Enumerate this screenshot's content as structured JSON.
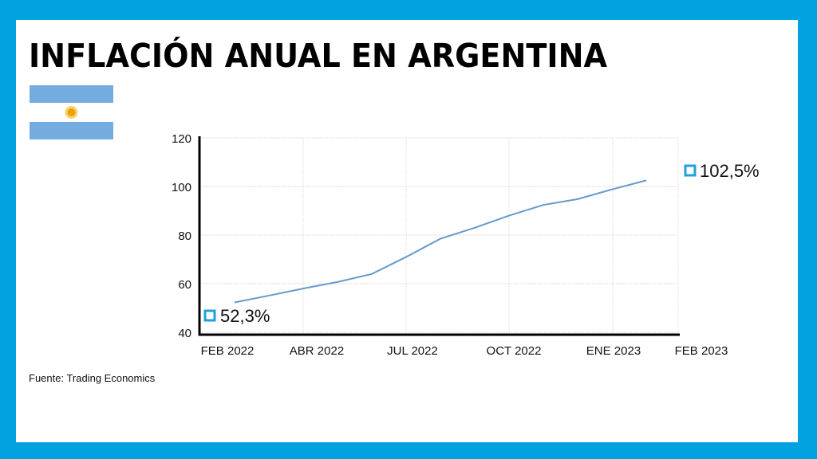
{
  "title": "INFLACIÓN ANUAL EN ARGENTINA",
  "source": "Fuente: Trading Economics",
  "colors": {
    "frame": "#00a3e0",
    "line": "#6699cc",
    "marker": "#1fa0dc",
    "flag_blue": "#74acdf",
    "sun": "#f6b40e"
  },
  "flag_icon": "argentina-flag-icon",
  "chart_data": {
    "type": "line",
    "title": "",
    "xlabel": "",
    "ylabel": "",
    "ylim": [
      40,
      120
    ],
    "yticks": [
      "40",
      "60",
      "80",
      "100",
      "120"
    ],
    "xtick_labels": [
      "FEB 2022",
      "ABR 2022",
      "JUL 2022",
      "OCT 2022",
      "ENE 2023",
      "FEB 2023"
    ],
    "grid": true,
    "x": [
      "2022-02",
      "2022-03",
      "2022-04",
      "2022-05",
      "2022-06",
      "2022-07",
      "2022-08",
      "2022-09",
      "2022-10",
      "2022-11",
      "2022-12",
      "2023-01",
      "2023-02"
    ],
    "values": [
      52.3,
      55.1,
      58.0,
      60.7,
      64.0,
      71.0,
      78.5,
      83.0,
      88.0,
      92.4,
      94.8,
      98.8,
      102.5
    ],
    "annotations": {
      "start": "52,3%",
      "end": "102,5%"
    }
  }
}
